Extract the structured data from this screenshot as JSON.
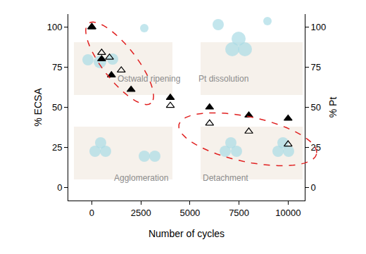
{
  "chart_data": {
    "type": "scatter",
    "x_label": "Number of cycles",
    "y_label": "% ECSA",
    "y2_label": "% Pt",
    "xlim": [
      -1200,
      10850
    ],
    "xticks": [
      0,
      2500,
      5000,
      7500,
      10000
    ],
    "ylim": [
      -8,
      108
    ],
    "yticks": [
      0,
      25,
      50,
      75,
      100
    ],
    "y2lim": [
      -8,
      108
    ],
    "y2ticks": [
      0,
      25,
      50,
      75,
      100
    ],
    "grid": false,
    "annotations": [
      "Ostwald ripening",
      "Pt dissolution",
      "Agglomeration",
      "Detachment"
    ],
    "series": [
      {
        "color": "#000000",
        "marker": "triangle-up",
        "x": [
          0,
          500,
          1000,
          2000,
          4000,
          6000,
          8000,
          10000
        ],
        "values": [
          100,
          80,
          70,
          61,
          56,
          50,
          45,
          43
        ]
      },
      {
        "color": "#000000",
        "marker": "triangle-up-open",
        "axis": "y2",
        "x": [
          0,
          500,
          900,
          1500,
          4000,
          6000,
          8000,
          10000
        ],
        "values": [
          100,
          84,
          81,
          73,
          51,
          40,
          35,
          27
        ]
      }
    ]
  }
}
